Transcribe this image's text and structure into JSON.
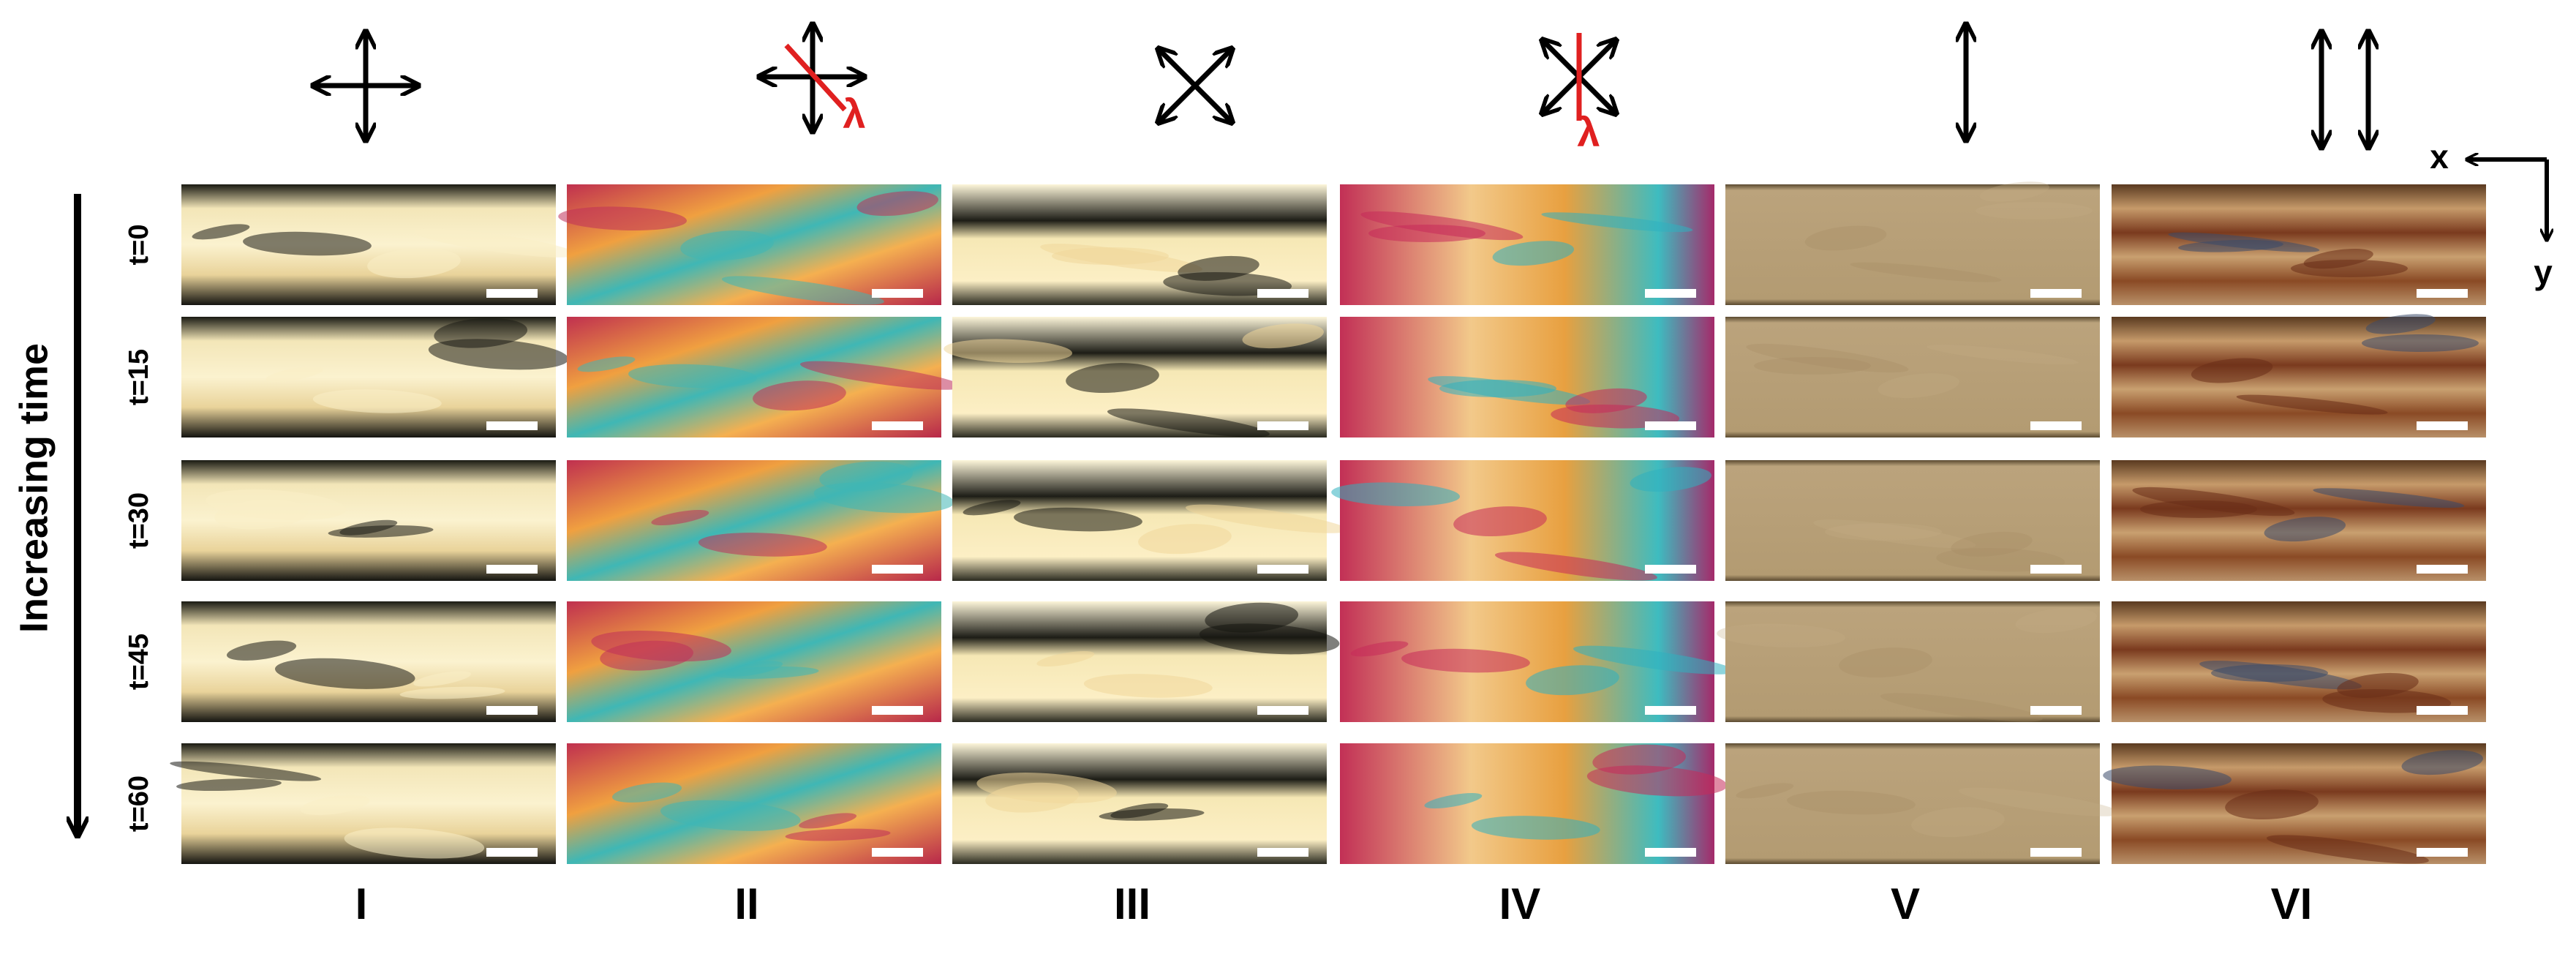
{
  "time_label": "Increasing time",
  "rows": [
    "t=0",
    "t=15",
    "t=30",
    "t=45",
    "t=60"
  ],
  "columns": [
    "I",
    "II",
    "III",
    "IV",
    "V",
    "VI"
  ],
  "lambda_labels": [
    "λ",
    "λ"
  ],
  "axes": {
    "x": "x",
    "y": "y"
  }
}
